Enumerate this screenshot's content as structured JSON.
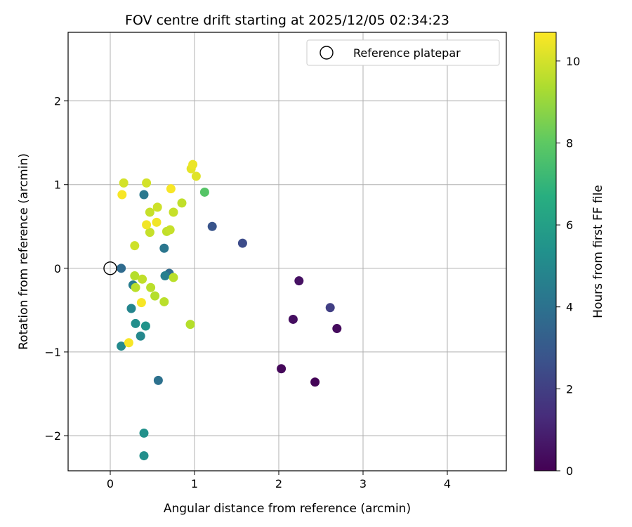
{
  "chart_data": {
    "type": "scatter",
    "title": "FOV centre drift starting at 2025/12/05 02:34:23",
    "xlabel": "Angular distance from reference (arcmin)",
    "ylabel": "Rotation from reference (arcmin)",
    "xlim": [
      -0.5,
      4.7
    ],
    "ylim": [
      -2.42,
      2.82
    ],
    "xticks": [
      0,
      1,
      2,
      3,
      4
    ],
    "yticks": [
      -2,
      -1,
      0,
      1,
      2
    ],
    "xtick_labels": [
      "0",
      "1",
      "2",
      "3",
      "4"
    ],
    "ytick_labels": [
      "−2",
      "−1",
      "0",
      "1",
      "2"
    ],
    "grid": true,
    "legend": {
      "position": "top-right",
      "entries": [
        "Reference platepar"
      ]
    },
    "reference_point": {
      "x": 0,
      "y": 0,
      "label": "Reference platepar"
    },
    "colorbar": {
      "label": "Hours from first FF file",
      "colormap": "viridis",
      "range": [
        0,
        10.7
      ],
      "ticks": [
        0,
        2,
        4,
        6,
        8,
        10
      ],
      "tick_labels": [
        "0",
        "2",
        "4",
        "6",
        "8",
        "10"
      ]
    },
    "points": [
      {
        "x": 2.43,
        "y": -1.36,
        "t": 0.1
      },
      {
        "x": 2.03,
        "y": -1.2,
        "t": 0.2
      },
      {
        "x": 2.69,
        "y": -0.72,
        "t": 0.3
      },
      {
        "x": 2.17,
        "y": -0.61,
        "t": 0.4
      },
      {
        "x": 2.24,
        "y": -0.15,
        "t": 0.5
      },
      {
        "x": 2.61,
        "y": -0.47,
        "t": 2.0
      },
      {
        "x": 1.57,
        "y": 0.3,
        "t": 2.5
      },
      {
        "x": 1.21,
        "y": 0.5,
        "t": 2.8
      },
      {
        "x": 0.13,
        "y": 0.0,
        "t": 3.7
      },
      {
        "x": 0.7,
        "y": -0.06,
        "t": 3.8
      },
      {
        "x": 0.57,
        "y": -1.34,
        "t": 4.0
      },
      {
        "x": 0.64,
        "y": 0.24,
        "t": 4.2
      },
      {
        "x": 0.4,
        "y": 0.88,
        "t": 4.3
      },
      {
        "x": 0.27,
        "y": -0.2,
        "t": 4.5
      },
      {
        "x": 0.65,
        "y": -0.09,
        "t": 4.6
      },
      {
        "x": 0.25,
        "y": -0.48,
        "t": 4.9
      },
      {
        "x": 0.36,
        "y": -0.81,
        "t": 5.0
      },
      {
        "x": 0.13,
        "y": -0.93,
        "t": 5.1
      },
      {
        "x": 0.3,
        "y": -0.66,
        "t": 5.3
      },
      {
        "x": 0.42,
        "y": -0.69,
        "t": 5.5
      },
      {
        "x": 0.4,
        "y": -1.97,
        "t": 5.4
      },
      {
        "x": 0.4,
        "y": -2.24,
        "t": 5.3
      },
      {
        "x": 1.12,
        "y": 0.91,
        "t": 7.8
      },
      {
        "x": 0.29,
        "y": -0.09,
        "t": 9.5
      },
      {
        "x": 0.3,
        "y": -0.23,
        "t": 9.6
      },
      {
        "x": 0.38,
        "y": -0.13,
        "t": 9.7
      },
      {
        "x": 0.48,
        "y": -0.23,
        "t": 9.6
      },
      {
        "x": 0.53,
        "y": -0.33,
        "t": 9.5
      },
      {
        "x": 0.64,
        "y": -0.4,
        "t": 9.6
      },
      {
        "x": 0.75,
        "y": -0.11,
        "t": 9.6
      },
      {
        "x": 0.95,
        "y": -0.67,
        "t": 9.5
      },
      {
        "x": 0.29,
        "y": 0.27,
        "t": 9.9
      },
      {
        "x": 0.47,
        "y": 0.43,
        "t": 9.8
      },
      {
        "x": 0.67,
        "y": 0.44,
        "t": 9.7
      },
      {
        "x": 0.71,
        "y": 0.46,
        "t": 9.8
      },
      {
        "x": 0.47,
        "y": 0.67,
        "t": 9.8
      },
      {
        "x": 0.56,
        "y": 0.73,
        "t": 9.9
      },
      {
        "x": 0.75,
        "y": 0.67,
        "t": 9.8
      },
      {
        "x": 0.85,
        "y": 0.78,
        "t": 9.7
      },
      {
        "x": 0.16,
        "y": 1.02,
        "t": 10.0
      },
      {
        "x": 0.43,
        "y": 1.02,
        "t": 10.0
      },
      {
        "x": 0.96,
        "y": 1.19,
        "t": 10.3
      },
      {
        "x": 0.98,
        "y": 1.24,
        "t": 10.4
      },
      {
        "x": 1.02,
        "y": 1.1,
        "t": 10.2
      },
      {
        "x": 0.14,
        "y": 0.88,
        "t": 10.6
      },
      {
        "x": 0.72,
        "y": 0.95,
        "t": 10.6
      },
      {
        "x": 0.43,
        "y": 0.52,
        "t": 10.5
      },
      {
        "x": 0.55,
        "y": 0.55,
        "t": 10.5
      },
      {
        "x": 0.37,
        "y": -0.41,
        "t": 10.6
      },
      {
        "x": 0.22,
        "y": -0.89,
        "t": 10.6
      }
    ]
  }
}
